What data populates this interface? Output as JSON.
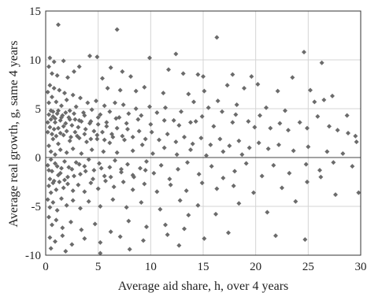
{
  "chart_data": {
    "type": "scatter",
    "title": "",
    "xlabel": "Average aid share, h, over 4 years",
    "ylabel": "Average real growth, g, same 4 years",
    "xlim": [
      0,
      30
    ],
    "ylim": [
      -10,
      15
    ],
    "xticks": [
      0,
      5,
      10,
      15,
      20,
      25,
      30
    ],
    "yticks": [
      -10,
      -5,
      0,
      5,
      10,
      15
    ],
    "grid": true,
    "zero_line": true,
    "marker": "diamond",
    "marker_color": "#6b6b6b",
    "points": [
      [
        1.2,
        13.6
      ],
      [
        6.8,
        13.1
      ],
      [
        16.3,
        12.3
      ],
      [
        24.6,
        10.8
      ],
      [
        26.3,
        9.7
      ],
      [
        12.4,
        10.6
      ],
      [
        9.9,
        10.2
      ],
      [
        0.4,
        10.2
      ],
      [
        0.8,
        9.8
      ],
      [
        1.7,
        9.9
      ],
      [
        4.2,
        10.4
      ],
      [
        4.9,
        10.3
      ],
      [
        3.2,
        9.3
      ],
      [
        2.7,
        8.8
      ],
      [
        0.3,
        9.3
      ],
      [
        0.6,
        8.6
      ],
      [
        1.1,
        8.4
      ],
      [
        2.1,
        8.2
      ],
      [
        5.4,
        8.1
      ],
      [
        6.2,
        9.2
      ],
      [
        7.3,
        8.8
      ],
      [
        8.1,
        8.3
      ],
      [
        11.7,
        9.0
      ],
      [
        13.1,
        8.6
      ],
      [
        14.5,
        8.5
      ],
      [
        15.0,
        8.3
      ],
      [
        17.8,
        8.5
      ],
      [
        19.6,
        8.3
      ],
      [
        23.5,
        8.2
      ],
      [
        17.3,
        7.4
      ],
      [
        18.9,
        7.1
      ],
      [
        20.2,
        7.5
      ],
      [
        22.1,
        6.8
      ],
      [
        25.2,
        6.9
      ],
      [
        27.3,
        6.3
      ],
      [
        15.1,
        6.8
      ],
      [
        13.6,
        6.5
      ],
      [
        11.2,
        6.6
      ],
      [
        9.4,
        7.2
      ],
      [
        8.6,
        6.8
      ],
      [
        7.1,
        6.9
      ],
      [
        5.9,
        7.1
      ],
      [
        16.4,
        5.8
      ],
      [
        18.2,
        5.4
      ],
      [
        21.0,
        5.1
      ],
      [
        22.8,
        4.8
      ],
      [
        25.6,
        5.7
      ],
      [
        26.5,
        5.9
      ],
      [
        28.7,
        4.3
      ],
      [
        29.5,
        2.2
      ],
      [
        29.6,
        1.6
      ],
      [
        28.8,
        2.5
      ],
      [
        27.0,
        3.2
      ],
      [
        25.9,
        4.2
      ],
      [
        24.2,
        3.6
      ],
      [
        23.1,
        2.8
      ],
      [
        21.4,
        3.0
      ],
      [
        20.4,
        4.3
      ],
      [
        19.3,
        3.7
      ],
      [
        18.1,
        4.4
      ],
      [
        16.8,
        4.7
      ],
      [
        15.5,
        5.1
      ],
      [
        14.9,
        4.2
      ],
      [
        14.1,
        5.7
      ],
      [
        13.8,
        3.6
      ],
      [
        12.9,
        4.7
      ],
      [
        12.2,
        3.8
      ],
      [
        11.4,
        5.1
      ],
      [
        10.6,
        4.6
      ],
      [
        9.9,
        5.2
      ],
      [
        9.1,
        4.3
      ],
      [
        8.6,
        5.0
      ],
      [
        7.9,
        4.5
      ],
      [
        7.4,
        5.4
      ],
      [
        7.0,
        4.1
      ],
      [
        6.6,
        5.6
      ],
      [
        6.1,
        4.7
      ],
      [
        5.6,
        5.3
      ],
      [
        5.2,
        4.4
      ],
      [
        4.8,
        5.8
      ],
      [
        4.4,
        4.9
      ],
      [
        4.0,
        5.6
      ],
      [
        3.6,
        4.6
      ],
      [
        3.3,
        6.1
      ],
      [
        2.9,
        5.2
      ],
      [
        2.6,
        6.4
      ],
      [
        2.3,
        4.8
      ],
      [
        2.0,
        5.9
      ],
      [
        1.8,
        6.6
      ],
      [
        1.5,
        5.3
      ],
      [
        1.3,
        6.9
      ],
      [
        1.0,
        5.7
      ],
      [
        0.8,
        7.1
      ],
      [
        0.6,
        6.2
      ],
      [
        0.4,
        7.4
      ],
      [
        0.3,
        5.6
      ],
      [
        0.2,
        6.7
      ],
      [
        0.5,
        4.8
      ],
      [
        0.7,
        4.2
      ],
      [
        0.9,
        3.6
      ],
      [
        1.1,
        4.5
      ],
      [
        1.4,
        3.8
      ],
      [
        1.6,
        4.3
      ],
      [
        1.9,
        3.5
      ],
      [
        2.2,
        4.1
      ],
      [
        2.5,
        3.3
      ],
      [
        2.8,
        3.9
      ],
      [
        3.1,
        3.1
      ],
      [
        3.4,
        3.7
      ],
      [
        3.8,
        2.9
      ],
      [
        4.2,
        3.5
      ],
      [
        4.6,
        2.7
      ],
      [
        5.0,
        3.4
      ],
      [
        5.4,
        2.6
      ],
      [
        5.8,
        3.2
      ],
      [
        6.3,
        2.4
      ],
      [
        6.8,
        3.0
      ],
      [
        7.3,
        2.2
      ],
      [
        7.8,
        2.9
      ],
      [
        8.3,
        2.1
      ],
      [
        8.9,
        2.7
      ],
      [
        9.5,
        1.9
      ],
      [
        10.1,
        2.6
      ],
      [
        10.8,
        1.8
      ],
      [
        11.6,
        2.4
      ],
      [
        12.4,
        1.6
      ],
      [
        13.2,
        2.1
      ],
      [
        14.0,
        1.4
      ],
      [
        14.8,
        2.0
      ],
      [
        15.7,
        1.3
      ],
      [
        16.6,
        1.9
      ],
      [
        17.5,
        1.2
      ],
      [
        18.4,
        1.7
      ],
      [
        19.4,
        1.0
      ],
      [
        20.3,
        1.5
      ],
      [
        21.2,
        0.9
      ],
      [
        22.2,
        1.3
      ],
      [
        23.6,
        0.7
      ],
      [
        25.0,
        1.1
      ],
      [
        26.8,
        0.6
      ],
      [
        28.3,
        0.4
      ],
      [
        29.2,
        -0.9
      ],
      [
        27.4,
        -0.5
      ],
      [
        26.1,
        -1.3
      ],
      [
        24.8,
        -0.7
      ],
      [
        23.2,
        -1.6
      ],
      [
        21.7,
        -0.8
      ],
      [
        20.6,
        -1.9
      ],
      [
        19.1,
        -0.6
      ],
      [
        18.0,
        -1.4
      ],
      [
        16.9,
        -2.1
      ],
      [
        15.8,
        -0.9
      ],
      [
        14.6,
        -1.7
      ],
      [
        13.5,
        -0.5
      ],
      [
        12.6,
        -1.2
      ],
      [
        11.8,
        -2.2
      ],
      [
        11.0,
        -0.8
      ],
      [
        10.3,
        -1.6
      ],
      [
        9.6,
        -0.4
      ],
      [
        9.0,
        -1.1
      ],
      [
        8.4,
        -2.0
      ],
      [
        7.8,
        -0.7
      ],
      [
        7.2,
        -1.5
      ],
      [
        6.6,
        -0.3
      ],
      [
        6.1,
        -1.0
      ],
      [
        5.6,
        -1.9
      ],
      [
        5.1,
        -0.6
      ],
      [
        4.6,
        -1.3
      ],
      [
        4.1,
        -0.2
      ],
      [
        3.7,
        -0.9
      ],
      [
        3.3,
        -1.7
      ],
      [
        2.9,
        -0.5
      ],
      [
        2.5,
        -1.2
      ],
      [
        2.1,
        -2.0
      ],
      [
        1.8,
        -0.4
      ],
      [
        1.5,
        -1.1
      ],
      [
        1.2,
        -1.8
      ],
      [
        0.9,
        -0.6
      ],
      [
        0.6,
        -1.4
      ],
      [
        0.4,
        -2.2
      ],
      [
        0.2,
        -0.8
      ],
      [
        0.3,
        -2.9
      ],
      [
        0.5,
        -3.6
      ],
      [
        0.7,
        -2.6
      ],
      [
        1.0,
        -3.3
      ],
      [
        1.3,
        -2.5
      ],
      [
        1.7,
        -3.1
      ],
      [
        2.1,
        -2.7
      ],
      [
        2.6,
        -3.4
      ],
      [
        3.1,
        -2.8
      ],
      [
        3.7,
        -3.5
      ],
      [
        4.3,
        -2.6
      ],
      [
        5.0,
        -3.2
      ],
      [
        5.7,
        -2.4
      ],
      [
        6.5,
        -3.0
      ],
      [
        7.4,
        -2.5
      ],
      [
        8.3,
        -3.3
      ],
      [
        9.4,
        -2.7
      ],
      [
        10.6,
        -3.5
      ],
      [
        11.9,
        -2.8
      ],
      [
        13.4,
        -3.4
      ],
      [
        14.9,
        -2.6
      ],
      [
        16.3,
        -3.2
      ],
      [
        17.9,
        -2.9
      ],
      [
        19.8,
        -3.6
      ],
      [
        22.5,
        -3.1
      ],
      [
        24.9,
        -2.5
      ],
      [
        27.6,
        -3.8
      ],
      [
        29.8,
        -3.6
      ],
      [
        26.2,
        -2.0
      ],
      [
        0.2,
        -4.3
      ],
      [
        0.4,
        -5.1
      ],
      [
        0.7,
        -4.6
      ],
      [
        1.1,
        -5.4
      ],
      [
        1.5,
        -4.2
      ],
      [
        2.0,
        -4.9
      ],
      [
        2.6,
        -4.4
      ],
      [
        3.3,
        -5.2
      ],
      [
        4.1,
        -4.5
      ],
      [
        5.2,
        -5.0
      ],
      [
        6.4,
        -4.3
      ],
      [
        7.7,
        -5.1
      ],
      [
        9.1,
        -4.6
      ],
      [
        10.9,
        -5.3
      ],
      [
        12.8,
        -4.4
      ],
      [
        14.5,
        -4.9
      ],
      [
        16.2,
        -5.8
      ],
      [
        18.4,
        -4.7
      ],
      [
        21.1,
        -5.6
      ],
      [
        23.8,
        -4.5
      ],
      [
        13.6,
        -5.9
      ],
      [
        0.3,
        -6.1
      ],
      [
        0.6,
        -6.9
      ],
      [
        1.0,
        -6.4
      ],
      [
        1.6,
        -7.2
      ],
      [
        2.4,
        -6.6
      ],
      [
        3.4,
        -7.4
      ],
      [
        4.7,
        -6.8
      ],
      [
        6.2,
        -7.6
      ],
      [
        7.9,
        -6.5
      ],
      [
        9.6,
        -7.1
      ],
      [
        11.4,
        -6.9
      ],
      [
        13.2,
        -7.3
      ],
      [
        0.4,
        -8.2
      ],
      [
        0.9,
        -8.6
      ],
      [
        1.6,
        -8.0
      ],
      [
        2.5,
        -8.9
      ],
      [
        3.7,
        -8.3
      ],
      [
        5.2,
        -8.7
      ],
      [
        7.1,
        -8.1
      ],
      [
        9.3,
        -8.5
      ],
      [
        11.6,
        -7.9
      ],
      [
        15.1,
        -8.3
      ],
      [
        17.4,
        -7.7
      ],
      [
        21.9,
        -8.0
      ],
      [
        24.7,
        -8.4
      ],
      [
        0.5,
        -9.3
      ],
      [
        1.9,
        -9.6
      ],
      [
        5.2,
        -9.8
      ],
      [
        8.0,
        -9.4
      ],
      [
        12.7,
        -9.0
      ],
      [
        0.3,
        1.2
      ],
      [
        0.5,
        0.6
      ],
      [
        0.7,
        1.9
      ],
      [
        0.9,
        0.3
      ],
      [
        1.2,
        1.4
      ],
      [
        1.4,
        0.8
      ],
      [
        1.7,
        2.3
      ],
      [
        2.0,
        0.5
      ],
      [
        2.3,
        1.7
      ],
      [
        2.6,
        0.9
      ],
      [
        3.0,
        2.2
      ],
      [
        3.4,
        0.4
      ],
      [
        3.9,
        1.6
      ],
      [
        4.4,
        0.8
      ],
      [
        4.9,
        1.9
      ],
      [
        5.5,
        0.6
      ],
      [
        6.1,
        1.5
      ],
      [
        6.8,
        0.5
      ],
      [
        7.5,
        1.8
      ],
      [
        8.3,
        0.7
      ],
      [
        9.2,
        1.3
      ],
      [
        10.2,
        0.4
      ],
      [
        11.3,
        1.0
      ],
      [
        12.5,
        0.3
      ],
      [
        13.8,
        0.8
      ],
      [
        15.3,
        0.2
      ],
      [
        16.9,
        0.6
      ],
      [
        18.7,
        0.3
      ],
      [
        0.2,
        2.6
      ],
      [
        0.4,
        3.1
      ],
      [
        0.6,
        2.4
      ],
      [
        0.8,
        2.9
      ],
      [
        1.0,
        2.2
      ],
      [
        1.2,
        3.0
      ],
      [
        1.4,
        2.5
      ],
      [
        1.7,
        3.2
      ],
      [
        2.0,
        2.7
      ],
      [
        2.4,
        2.1
      ],
      [
        2.8,
        2.6
      ],
      [
        3.2,
        2.0
      ],
      [
        3.7,
        2.4
      ],
      [
        4.3,
        1.9
      ],
      [
        4.9,
        2.3
      ],
      [
        5.6,
        1.8
      ],
      [
        6.4,
        2.1
      ],
      [
        0.3,
        -1.3
      ],
      [
        0.5,
        -0.2
      ],
      [
        0.8,
        -2.4
      ],
      [
        1.1,
        -0.9
      ],
      [
        1.4,
        -1.6
      ],
      [
        1.8,
        -2.3
      ],
      [
        2.2,
        -1.0
      ],
      [
        2.7,
        -1.9
      ],
      [
        3.2,
        -0.7
      ],
      [
        3.8,
        -1.4
      ],
      [
        4.5,
        -2.2
      ],
      [
        5.3,
        -1.1
      ],
      [
        6.2,
        -2.0
      ],
      [
        7.2,
        -1.2
      ],
      [
        8.3,
        -1.8
      ],
      [
        9.5,
        -1.3
      ],
      [
        0.2,
        3.6
      ],
      [
        0.3,
        4.4
      ],
      [
        0.5,
        3.9
      ],
      [
        0.7,
        4.7
      ],
      [
        0.9,
        4.0
      ],
      [
        1.2,
        4.8
      ],
      [
        1.5,
        4.1
      ],
      [
        1.9,
        4.6
      ],
      [
        2.3,
        3.9
      ],
      [
        2.7,
        4.5
      ],
      [
        3.2,
        3.8
      ],
      [
        3.7,
        4.3
      ],
      [
        4.3,
        3.7
      ],
      [
        5.0,
        4.1
      ],
      [
        5.8,
        3.6
      ],
      [
        6.7,
        4.0
      ],
      [
        7.7,
        3.5
      ],
      [
        8.8,
        3.9
      ],
      [
        10.0,
        3.4
      ],
      [
        11.3,
        3.8
      ],
      [
        12.7,
        3.3
      ],
      [
        14.3,
        3.7
      ],
      [
        16.0,
        3.2
      ],
      [
        17.8,
        3.6
      ],
      [
        19.9,
        3.1
      ],
      [
        22.3,
        3.5
      ],
      [
        24.9,
        3.0
      ],
      [
        27.8,
        2.8
      ]
    ]
  }
}
